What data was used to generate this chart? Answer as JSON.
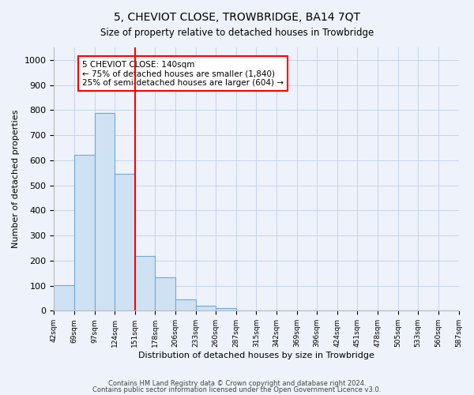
{
  "title": "5, CHEVIOT CLOSE, TROWBRIDGE, BA14 7QT",
  "subtitle": "Size of property relative to detached houses in Trowbridge",
  "xlabel": "Distribution of detached houses by size in Trowbridge",
  "ylabel": "Number of detached properties",
  "bin_labels": [
    "42sqm",
    "69sqm",
    "97sqm",
    "124sqm",
    "151sqm",
    "178sqm",
    "206sqm",
    "233sqm",
    "260sqm",
    "287sqm",
    "315sqm",
    "342sqm",
    "369sqm",
    "396sqm",
    "424sqm",
    "451sqm",
    "478sqm",
    "505sqm",
    "533sqm",
    "560sqm",
    "587sqm"
  ],
  "bar_values": [
    103,
    622,
    788,
    545,
    220,
    133,
    45,
    20,
    10,
    0,
    0,
    0,
    0,
    0,
    0,
    0,
    0,
    0,
    0,
    0
  ],
  "bar_color": "#cfe2f3",
  "bar_edge_color": "#6fa8dc",
  "property_line_x": 4,
  "property_line_color": "red",
  "ylim": [
    0,
    1050
  ],
  "yticks": [
    0,
    100,
    200,
    300,
    400,
    500,
    600,
    700,
    800,
    900,
    1000
  ],
  "annotation_title": "5 CHEVIOT CLOSE: 140sqm",
  "annotation_line1": "← 75% of detached houses are smaller (1,840)",
  "annotation_line2": "25% of semi-detached houses are larger (604) →",
  "footer_line1": "Contains HM Land Registry data © Crown copyright and database right 2024.",
  "footer_line2": "Contains public sector information licensed under the Open Government Licence v3.0.",
  "background_color": "#eef2fb",
  "grid_color": "#c8d4e8"
}
